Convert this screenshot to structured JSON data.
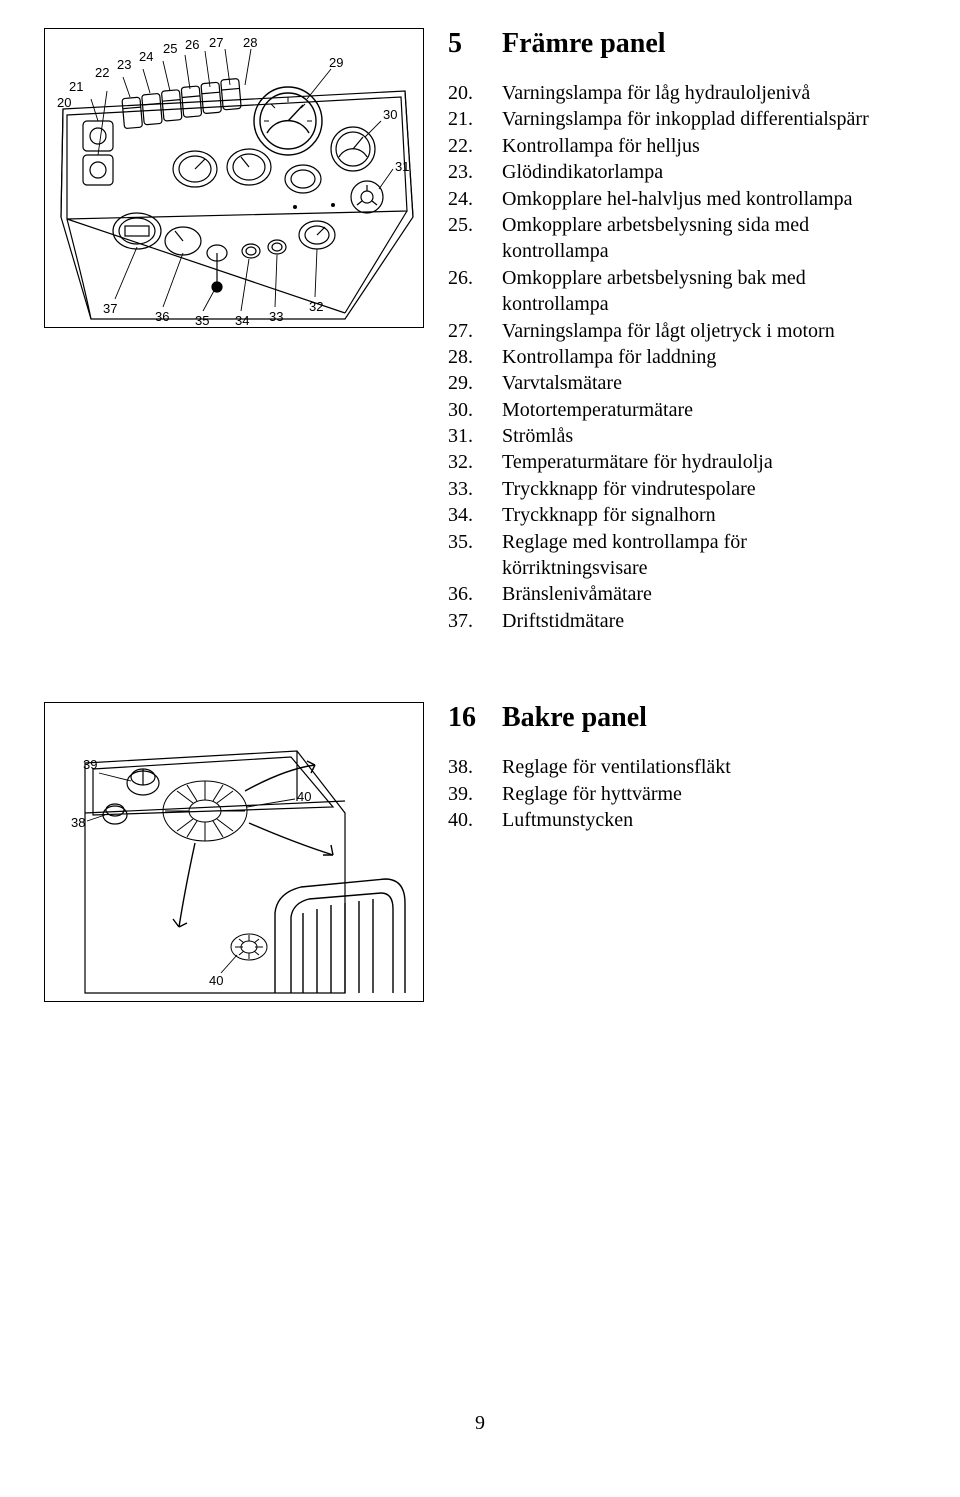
{
  "section1": {
    "number": "5",
    "title": "Främre panel",
    "items": [
      {
        "n": "20.",
        "t": "Varningslampa för låg hydrauloljenivå"
      },
      {
        "n": "21.",
        "t": "Varningslampa för inkopplad differentialspärr"
      },
      {
        "n": "22.",
        "t": "Kontrollampa för helljus"
      },
      {
        "n": "23.",
        "t": "Glödindikatorlampa"
      },
      {
        "n": "24.",
        "t": "Omkopplare hel-halvljus med kontrollampa"
      },
      {
        "n": "25.",
        "t": "Omkopplare arbetsbelysning sida med kontrollampa"
      },
      {
        "n": "26.",
        "t": "Omkopplare arbetsbelysning bak med kontrollampa"
      },
      {
        "n": "27.",
        "t": "Varningslampa för lågt oljetryck i motorn"
      },
      {
        "n": "28.",
        "t": "Kontrollampa för laddning"
      },
      {
        "n": "29.",
        "t": "Varvtalsmätare"
      },
      {
        "n": "30.",
        "t": "Motortemperaturmätare"
      },
      {
        "n": "31.",
        "t": "Strömlås"
      },
      {
        "n": "32.",
        "t": "Temperaturmätare för hydraulolja"
      },
      {
        "n": "33.",
        "t": "Tryckknapp för vindrutespolare"
      },
      {
        "n": "34.",
        "t": "Tryckknapp för signalhorn"
      },
      {
        "n": "35.",
        "t": "Reglage med kontrollampa för körriktningsvisare"
      },
      {
        "n": "36.",
        "t": "Bränslenivåmätare"
      },
      {
        "n": "37.",
        "t": "Driftstidmätare"
      }
    ]
  },
  "section2": {
    "number": "16",
    "title": "Bakre panel",
    "items": [
      {
        "n": "38.",
        "t": "Reglage för ventilationsfläkt"
      },
      {
        "n": "39.",
        "t": "Reglage för hyttvärme"
      },
      {
        "n": "40.",
        "t": "Luftmunstycken"
      }
    ]
  },
  "fig1": {
    "labels": {
      "20": "20",
      "21": "21",
      "22": "22",
      "23": "23",
      "24": "24",
      "25": "25",
      "26": "26",
      "27": "27",
      "28": "28",
      "29": "29",
      "30": "30",
      "31": "31",
      "32": "32",
      "33": "33",
      "34": "34",
      "35": "35",
      "36": "36",
      "37": "37"
    }
  },
  "fig2": {
    "labels": {
      "38": "38",
      "39": "39",
      "40a": "40",
      "40b": "40"
    }
  },
  "pageNumber": "9"
}
